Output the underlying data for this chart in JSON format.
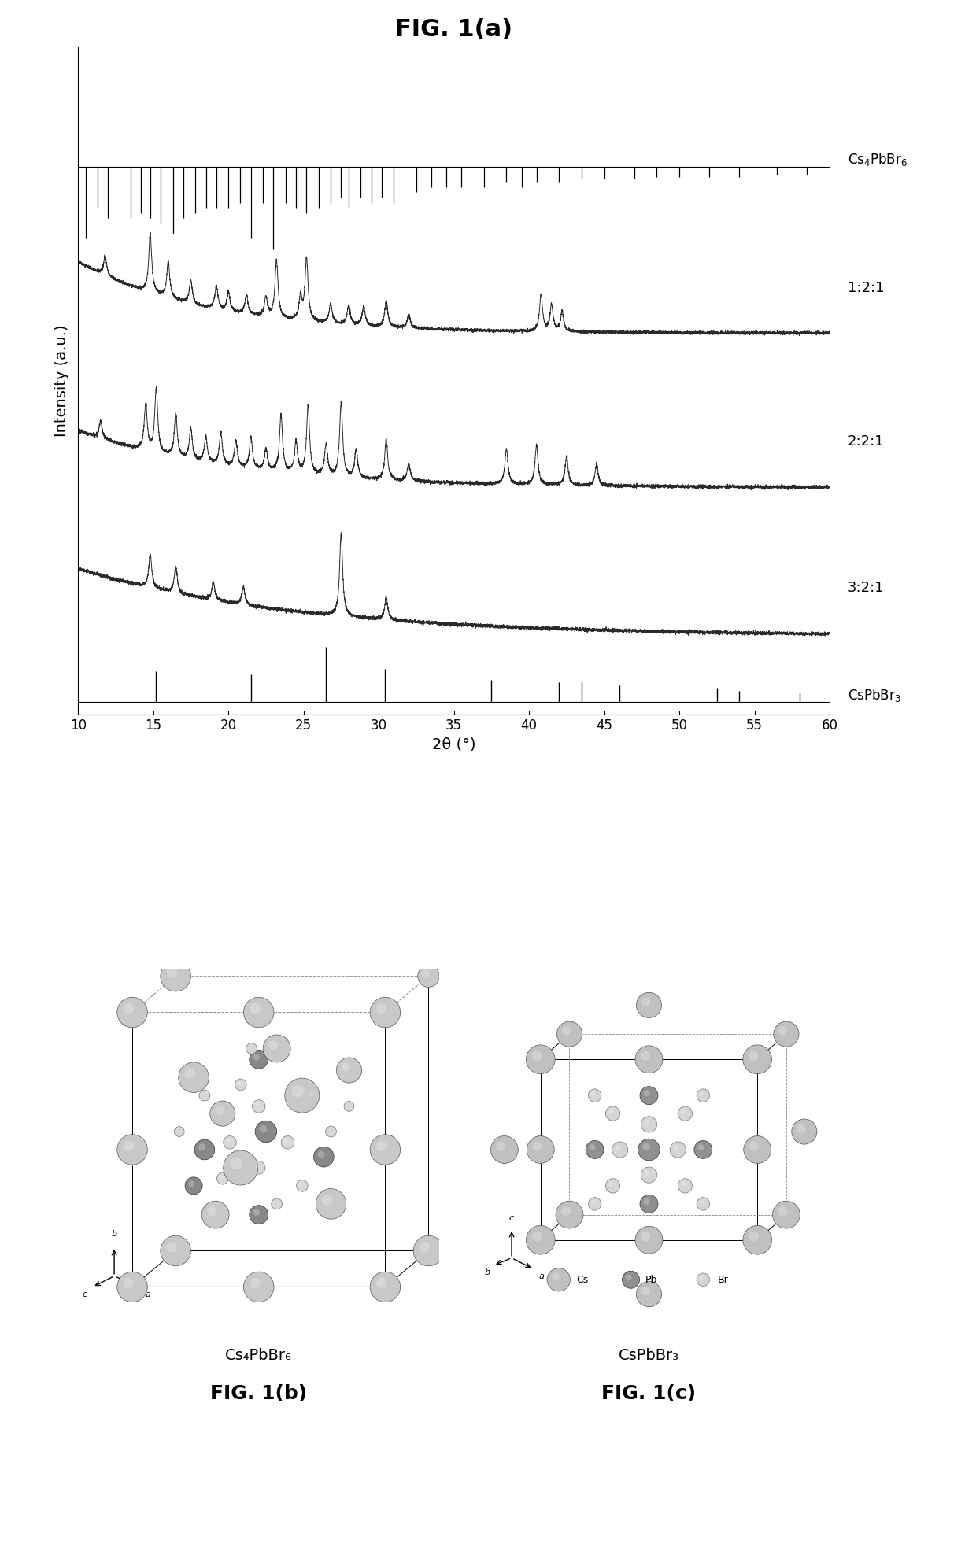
{
  "title_a": "FIG. 1(a)",
  "title_b": "FIG. 1(b)",
  "title_c": "FIG. 1(c)",
  "label_b": "Cs₄PbBr₆",
  "label_c": "CsPbBr₃",
  "xlabel": "2θ (°)",
  "ylabel": "Intensity (a.u.)",
  "xmin": 10,
  "xmax": 60,
  "xticks": [
    10,
    15,
    20,
    25,
    30,
    35,
    40,
    45,
    50,
    55,
    60
  ],
  "label_121": "1:2:1",
  "label_221": "2:2:1",
  "label_321": "3:2:1",
  "label_ref1": "Cs₄PbBr₆",
  "label_ref2": "CsPbBr₃",
  "cs4pbbr6_peaks": [
    10.5,
    11.3,
    12.0,
    13.5,
    14.2,
    14.8,
    15.5,
    16.3,
    17.0,
    17.8,
    18.5,
    19.2,
    20.0,
    20.8,
    21.5,
    22.3,
    23.0,
    23.8,
    24.5,
    25.2,
    26.0,
    26.8,
    27.5,
    28.0,
    28.8,
    29.5,
    30.2,
    31.0,
    32.5,
    33.5,
    34.5,
    35.5,
    37.0,
    38.5,
    39.5,
    40.5,
    42.0,
    43.5,
    45.0,
    47.0,
    48.5,
    50.0,
    52.0,
    54.0,
    56.5,
    58.5
  ],
  "cs4pbbr6_heights": [
    0.7,
    0.4,
    0.5,
    0.5,
    0.45,
    0.5,
    0.55,
    0.65,
    0.5,
    0.45,
    0.4,
    0.4,
    0.4,
    0.35,
    0.7,
    0.35,
    0.8,
    0.35,
    0.4,
    0.45,
    0.4,
    0.35,
    0.3,
    0.4,
    0.3,
    0.35,
    0.3,
    0.35,
    0.25,
    0.2,
    0.2,
    0.2,
    0.2,
    0.15,
    0.2,
    0.15,
    0.15,
    0.12,
    0.12,
    0.12,
    0.1,
    0.1,
    0.1,
    0.1,
    0.08,
    0.08
  ],
  "cspbbr3_peaks": [
    15.2,
    21.5,
    26.5,
    30.4,
    37.5,
    42.0,
    43.5,
    46.0,
    52.5,
    54.0,
    58.0
  ],
  "cspbbr3_heights": [
    0.55,
    0.5,
    1.0,
    0.6,
    0.4,
    0.35,
    0.35,
    0.3,
    0.25,
    0.2,
    0.15
  ],
  "background_color": "#ffffff",
  "line_color": "#2a2a2a",
  "ref_color": "#000000"
}
